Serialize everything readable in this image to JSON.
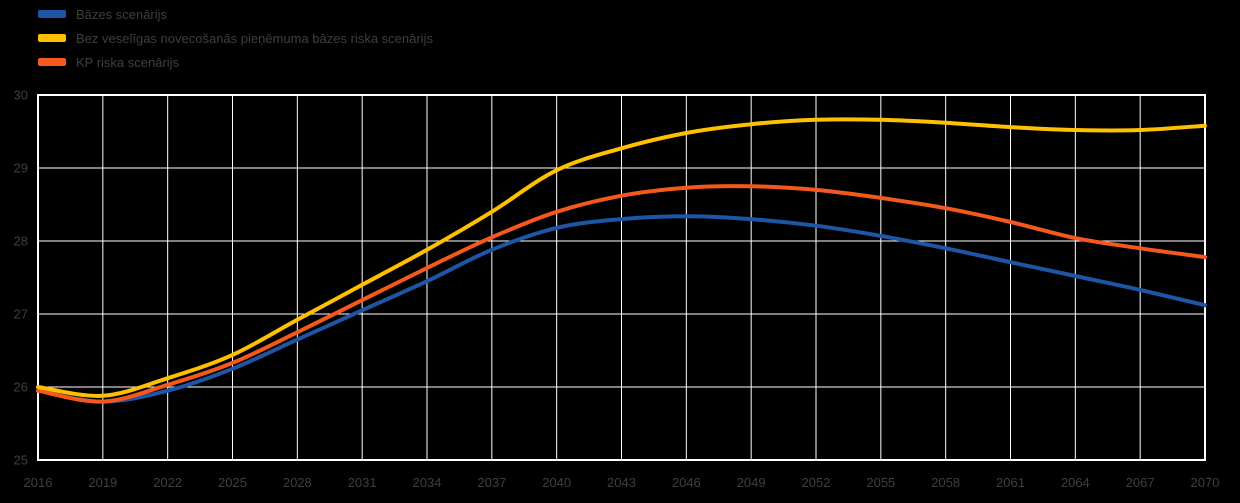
{
  "legend": {
    "items": [
      {
        "label": "Bāzes scenārijs",
        "color": "#1f55a5"
      },
      {
        "label": "Bez veselīgas novecošanās pieņēmuma bāzes riska scenārijs",
        "color": "#ffc000"
      },
      {
        "label": "KP riska scenārijs",
        "color": "#f4581c"
      }
    ]
  },
  "chart_data": {
    "type": "line",
    "title": "",
    "xlabel": "",
    "ylabel": "",
    "x": [
      2016,
      2019,
      2022,
      2025,
      2028,
      2031,
      2034,
      2037,
      2040,
      2043,
      2046,
      2049,
      2052,
      2055,
      2058,
      2061,
      2064,
      2067,
      2070
    ],
    "series": [
      {
        "name": "Bāzes scenārijs",
        "color": "#1f55a5",
        "values": [
          25.95,
          25.8,
          25.95,
          26.25,
          26.65,
          27.05,
          27.45,
          27.88,
          28.18,
          28.3,
          28.34,
          28.3,
          28.21,
          28.07,
          27.9,
          27.71,
          27.52,
          27.33,
          27.12
        ]
      },
      {
        "name": "Bez veselīgas novecošanās pieņēmuma bāzes riska scenārijs",
        "color": "#ffc000",
        "values": [
          26.0,
          25.88,
          26.12,
          26.44,
          26.92,
          27.4,
          27.88,
          28.4,
          28.97,
          29.27,
          29.48,
          29.6,
          29.66,
          29.66,
          29.62,
          29.56,
          29.52,
          29.52,
          29.58
        ]
      },
      {
        "name": "KP riska scenārijs",
        "color": "#f4581c",
        "values": [
          25.95,
          25.8,
          26.03,
          26.33,
          26.75,
          27.19,
          27.63,
          28.05,
          28.4,
          28.62,
          28.73,
          28.75,
          28.7,
          28.59,
          28.45,
          28.26,
          28.04,
          27.9,
          27.78
        ]
      }
    ],
    "ylim": [
      25,
      30
    ],
    "yticks": [
      25,
      26,
      27,
      28,
      29,
      30
    ],
    "xtick_labels": [
      "2016",
      "2019",
      "2022",
      "2025",
      "2028",
      "2031",
      "2034",
      "2037",
      "2040",
      "2043",
      "2046",
      "2049",
      "2052",
      "2055",
      "2058",
      "2061",
      "2064",
      "2067",
      "2070"
    ],
    "grid": true,
    "legend_position": "top-left",
    "background_color": "#000000",
    "grid_color": "#ffffff",
    "text_color": "#3f3f3f",
    "line_width": 4
  }
}
